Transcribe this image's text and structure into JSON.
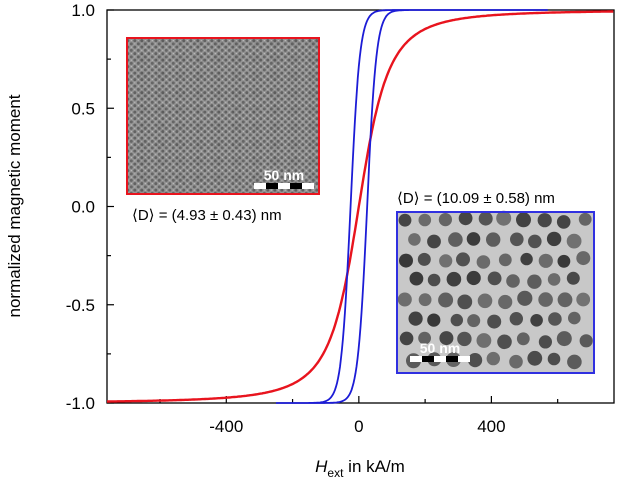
{
  "chart_data": {
    "type": "line",
    "title": "",
    "xlabel_main": "H",
    "xlabel_sub": "ext",
    "xlabel_rest": " in kA/m",
    "ylabel": "normalized magnetic moment",
    "xlim": [
      -760,
      770
    ],
    "ylim": [
      -1.0,
      1.0
    ],
    "xticks": [
      -400,
      0,
      400
    ],
    "xtick_labels": [
      "-400",
      "0",
      "400"
    ],
    "yticks": [
      1.0,
      0.5,
      0.0,
      -0.5,
      -1.0
    ],
    "ytick_labels": [
      "1.0",
      "0.5",
      "0.0",
      "-0.5",
      "-1.0"
    ],
    "grid": false,
    "series": [
      {
        "name": "(4.93 ± 0.43) nm particles",
        "color": "#e8141e",
        "model": "anhysteretic",
        "scale": 95,
        "coercivity": 0,
        "x_range": [
          -760,
          770
        ]
      },
      {
        "name": "(10.09 ± 0.58) nm particles",
        "color": "#1c1cd6",
        "model": "hysteresis-loop",
        "scale": 28,
        "coercivity": 25,
        "x_range": [
          -250,
          570
        ]
      }
    ],
    "annotations": {
      "small_label": "⟨D⟩ = (4.93 ± 0.43) nm",
      "large_label": "⟨D⟩ = (10.09 ± 0.58) nm",
      "scalebar_small": "50 nm",
      "scalebar_large": "50 nm"
    },
    "colors": {
      "inset_small_border": "#e8141e",
      "inset_large_border": "#3030e0",
      "inset_small_bg": "#8d8d8d",
      "inset_large_bg": "#c8c8c8"
    }
  }
}
